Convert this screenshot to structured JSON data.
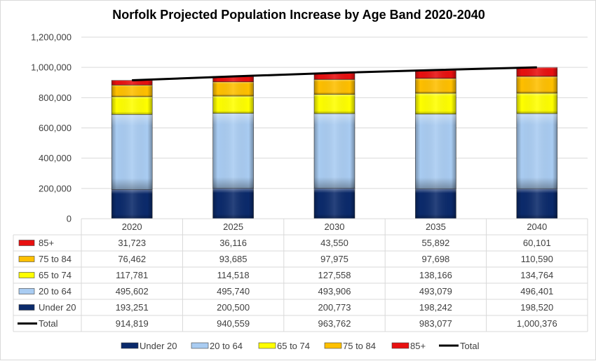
{
  "chart_data": {
    "type": "bar",
    "stacked": true,
    "title": "Norfolk Projected Population Increase by Age Band 2020-2040",
    "categories": [
      "2020",
      "2025",
      "2030",
      "2035",
      "2040"
    ],
    "ylim": [
      0,
      1200000
    ],
    "yticks": [
      "0",
      "200,000",
      "400,000",
      "600,000",
      "800,000",
      "1,000,000",
      "1,200,000"
    ],
    "grid": true,
    "legend_position": "bottom",
    "data_table": true,
    "series": [
      {
        "name": "Under 20",
        "kind": "bar",
        "color": "#0b2a6b",
        "values": [
          193251,
          200500,
          200773,
          198242,
          198520
        ],
        "labels": [
          "193,251",
          "200,500",
          "200,773",
          "198,242",
          "198,520"
        ]
      },
      {
        "name": "20 to 64",
        "kind": "bar",
        "color": "#a9ccf2",
        "values": [
          495602,
          495740,
          493906,
          493079,
          496401
        ],
        "labels": [
          "495,602",
          "495,740",
          "493,906",
          "493,079",
          "496,401"
        ]
      },
      {
        "name": "65 to 74",
        "kind": "bar",
        "color": "#ffff00",
        "values": [
          117781,
          114518,
          127558,
          138166,
          134764
        ],
        "labels": [
          "117,781",
          "114,518",
          "127,558",
          "138,166",
          "134,764"
        ]
      },
      {
        "name": "75 to 84",
        "kind": "bar",
        "color": "#ffc000",
        "values": [
          76462,
          93685,
          97975,
          97698,
          110590
        ],
        "labels": [
          "76,462",
          "93,685",
          "97,975",
          "97,698",
          "110,590"
        ]
      },
      {
        "name": "85+",
        "kind": "bar",
        "color": "#e81010",
        "values": [
          31723,
          36116,
          43550,
          55892,
          60101
        ],
        "labels": [
          "31,723",
          "36,116",
          "43,550",
          "55,892",
          "60,101"
        ]
      },
      {
        "name": "Total",
        "kind": "line",
        "color": "#000000",
        "values": [
          914819,
          940559,
          963762,
          983077,
          1000376
        ],
        "labels": [
          "914,819",
          "940,559",
          "963,762",
          "983,077",
          "1,000,376"
        ]
      }
    ]
  }
}
